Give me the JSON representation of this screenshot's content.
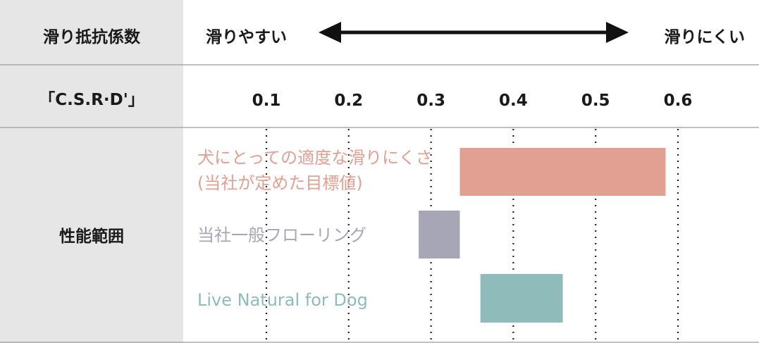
{
  "header": {
    "row1_label": "滑り抵抗係数",
    "slippery": "滑りやすい",
    "less_slippery": "滑りにくい",
    "row2_label": "「C.S.R·D'」",
    "row3_label": "性能範囲"
  },
  "chart_data": {
    "type": "bar",
    "orientation": "horizontal-range",
    "xlim": [
      0.1,
      0.6
    ],
    "ticks": [
      "0.1",
      "0.2",
      "0.3",
      "0.4",
      "0.5",
      "0.6"
    ],
    "grid": "dotted-vertical",
    "series": [
      {
        "name": "犬にとっての適度な滑りにくさ",
        "name_line2": "(当社が定めた目標値)",
        "start": 0.335,
        "end": 0.585,
        "color": "#e2a093"
      },
      {
        "name": "当社一般フローリング",
        "start": 0.285,
        "end": 0.335,
        "color": "#a7a6b6"
      },
      {
        "name": "Live Natural for Dog",
        "start": 0.36,
        "end": 0.46,
        "color": "#8fbbbb"
      }
    ]
  },
  "colors": {
    "header_bg": "#e6e6e6",
    "border": "#9c9c9c",
    "text": "#1a1a1a"
  }
}
